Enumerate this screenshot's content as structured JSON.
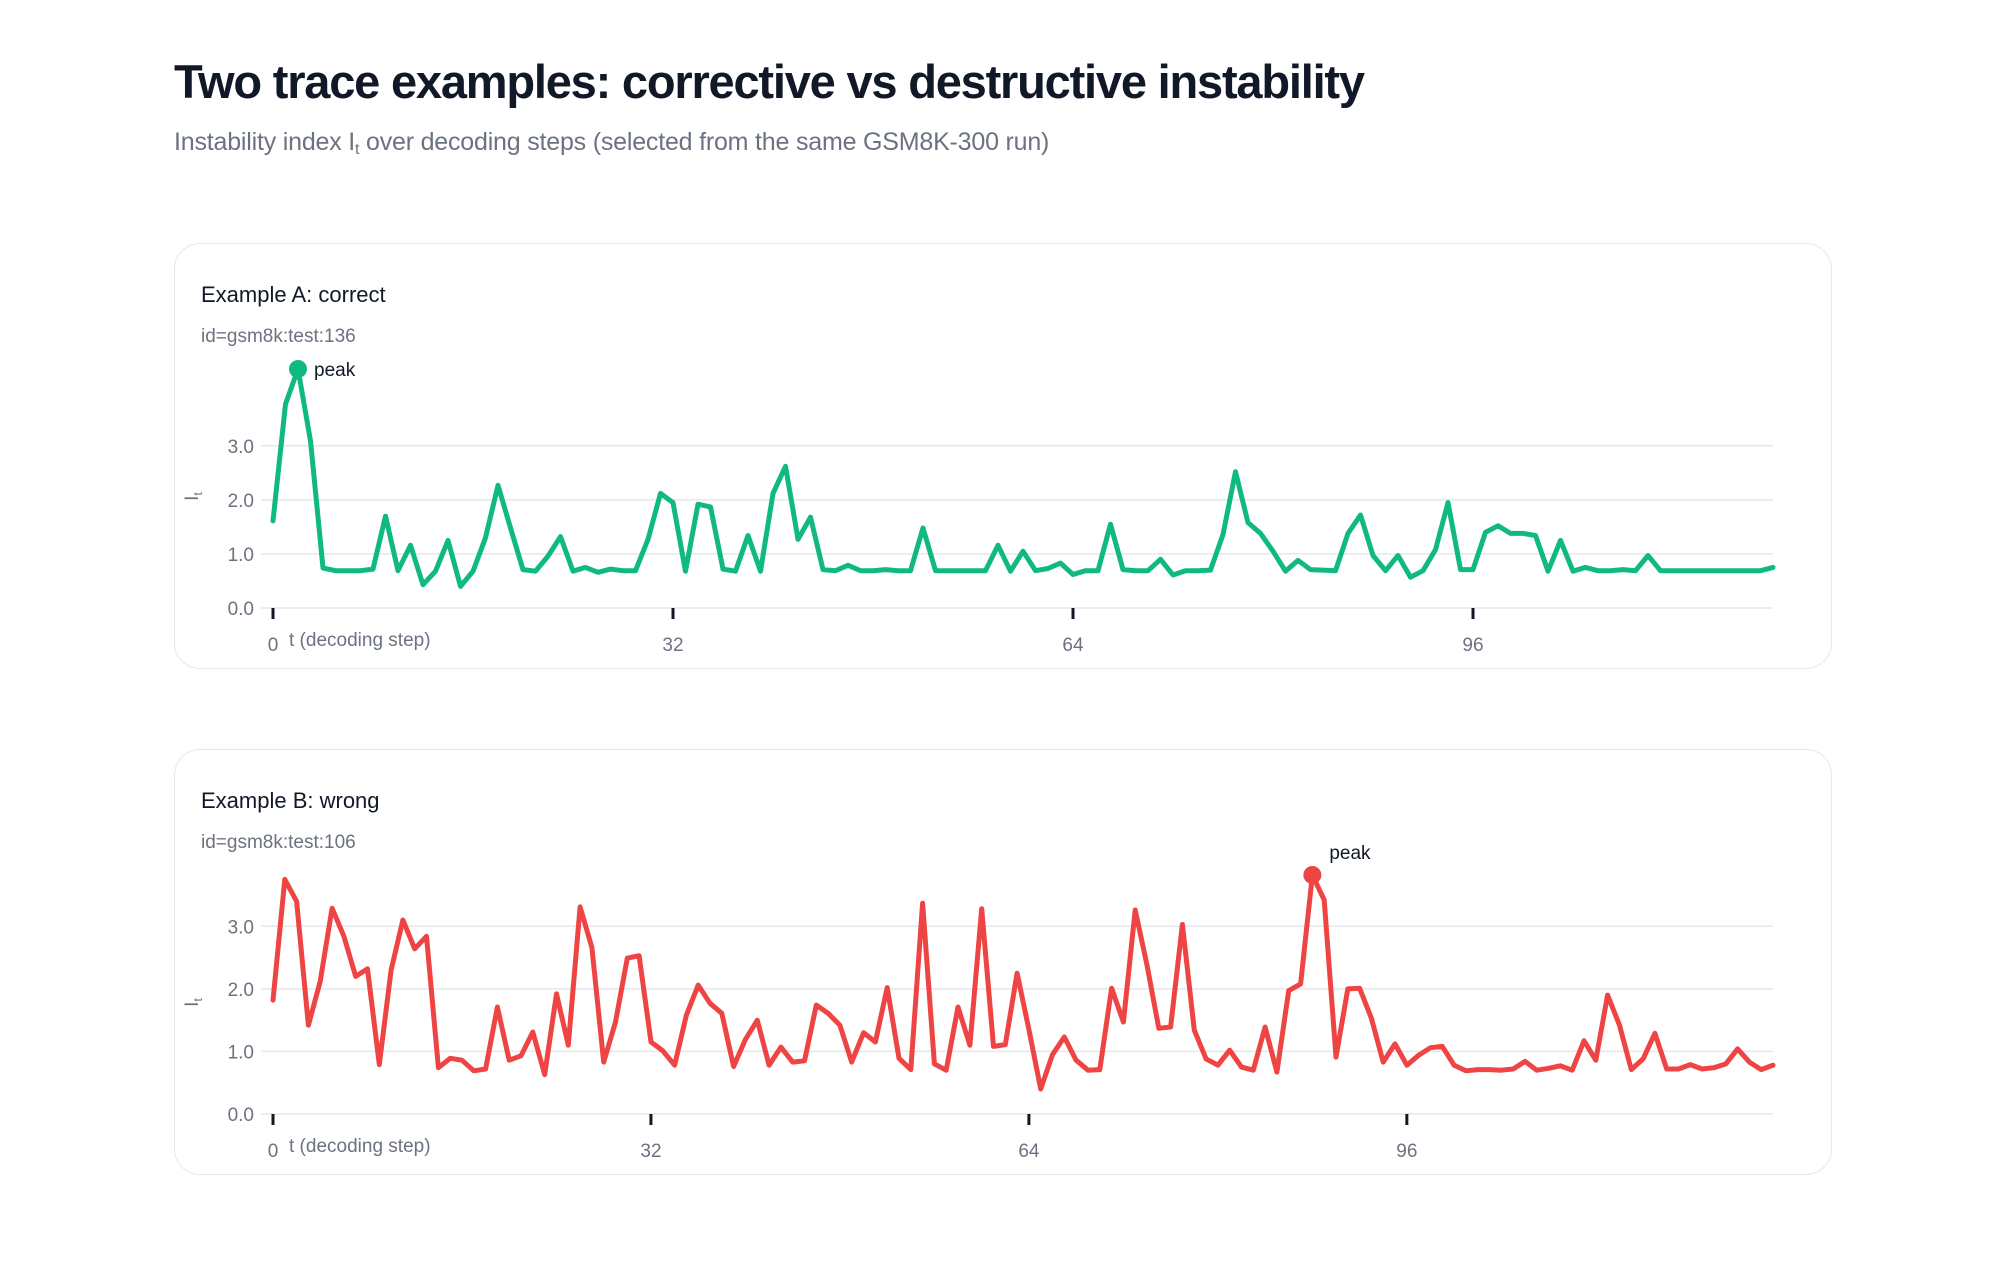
{
  "header": {
    "title": "Two trace examples: corrective vs destructive instability",
    "subtitle_pre": "Instability index I",
    "subtitle_sub": "t",
    "subtitle_post": " over decoding steps (selected from the same GSM8K-300 run)"
  },
  "chart_data": [
    {
      "type": "line",
      "title": "Example A: correct",
      "subtitle": "id=gsm8k:test:136",
      "color": "#10b981",
      "xlabel": "t (decoding step)",
      "ylabel": "I",
      "ylabel_sub": "t",
      "x_ticks": [
        "0",
        "32",
        "64",
        "96"
      ],
      "y_ticks": [
        "0.0",
        "1.0",
        "2.0",
        "3.0"
      ],
      "grid": true,
      "xlim": [
        0,
        120
      ],
      "ylim": [
        0,
        4.42
      ],
      "peak": {
        "label": "peak",
        "step": 2,
        "value": 4.42
      },
      "values": [
        1.61,
        3.77,
        4.42,
        3.09,
        0.74,
        0.69,
        0.69,
        0.69,
        0.72,
        1.7,
        0.69,
        1.16,
        0.43,
        0.68,
        1.25,
        0.4,
        0.68,
        1.3,
        2.27,
        1.48,
        0.71,
        0.68,
        0.96,
        1.32,
        0.68,
        0.75,
        0.66,
        0.72,
        0.69,
        0.69,
        1.27,
        2.12,
        1.95,
        0.68,
        1.92,
        1.87,
        0.72,
        0.68,
        1.34,
        0.68,
        2.12,
        2.62,
        1.27,
        1.68,
        0.71,
        0.69,
        0.79,
        0.69,
        0.69,
        0.71,
        0.69,
        0.69,
        1.48,
        0.69,
        0.69,
        0.69,
        0.69,
        0.69,
        1.16,
        0.68,
        1.05,
        0.69,
        0.73,
        0.83,
        0.62,
        0.69,
        0.69,
        1.55,
        0.71,
        0.69,
        0.69,
        0.9,
        0.61,
        0.69,
        0.69,
        0.7,
        1.36,
        2.52,
        1.58,
        1.38,
        1.05,
        0.68,
        0.88,
        0.71,
        0.7,
        0.69,
        1.38,
        1.72,
        0.97,
        0.69,
        0.97,
        0.57,
        0.69,
        1.08,
        1.95,
        0.71,
        0.71,
        1.4,
        1.52,
        1.38,
        1.38,
        1.34,
        0.68,
        1.25,
        0.68,
        0.75,
        0.69,
        0.69,
        0.71,
        0.69,
        0.97,
        0.69,
        0.69,
        0.69,
        0.69,
        0.69,
        0.69,
        0.69,
        0.69,
        0.69,
        0.75
      ]
    },
    {
      "type": "line",
      "title": "Example B: wrong",
      "subtitle": "id=gsm8k:test:106",
      "color": "#ef4444",
      "xlabel": "t (decoding step)",
      "ylabel": "I",
      "ylabel_sub": "t",
      "x_ticks": [
        "0",
        "32",
        "64",
        "96"
      ],
      "y_ticks": [
        "0.0",
        "1.0",
        "2.0",
        "3.0"
      ],
      "grid": true,
      "xlim": [
        0,
        127
      ],
      "ylim": [
        0,
        3.82
      ],
      "peak": {
        "label": "peak",
        "step": 88,
        "value": 3.82
      },
      "values": [
        1.82,
        3.75,
        3.4,
        1.42,
        2.12,
        3.29,
        2.84,
        2.2,
        2.32,
        0.79,
        2.3,
        3.1,
        2.64,
        2.84,
        0.74,
        0.89,
        0.86,
        0.69,
        0.72,
        1.71,
        0.86,
        0.93,
        1.31,
        0.63,
        1.92,
        1.1,
        3.31,
        2.66,
        0.83,
        1.47,
        2.49,
        2.53,
        1.15,
        1.01,
        0.78,
        1.58,
        2.06,
        1.77,
        1.61,
        0.76,
        1.19,
        1.5,
        0.78,
        1.07,
        0.83,
        0.85,
        1.74,
        1.61,
        1.42,
        0.83,
        1.3,
        1.15,
        2.02,
        0.89,
        0.71,
        3.37,
        0.8,
        0.7,
        1.71,
        1.1,
        3.28,
        1.08,
        1.11,
        2.25,
        1.35,
        0.4,
        0.95,
        1.23,
        0.86,
        0.7,
        0.71,
        2.01,
        1.47,
        3.26,
        2.38,
        1.37,
        1.39,
        3.03,
        1.34,
        0.88,
        0.78,
        1.02,
        0.75,
        0.7,
        1.39,
        0.67,
        1.97,
        2.08,
        3.82,
        3.42,
        0.91,
        2.0,
        2.01,
        1.53,
        0.83,
        1.12,
        0.78,
        0.94,
        1.06,
        1.08,
        0.78,
        0.69,
        0.71,
        0.71,
        0.7,
        0.72,
        0.84,
        0.7,
        0.73,
        0.77,
        0.7,
        1.17,
        0.86,
        1.9,
        1.42,
        0.71,
        0.88,
        1.29,
        0.72,
        0.72,
        0.79,
        0.72,
        0.74,
        0.8,
        1.04,
        0.83,
        0.71,
        0.78
      ]
    }
  ]
}
